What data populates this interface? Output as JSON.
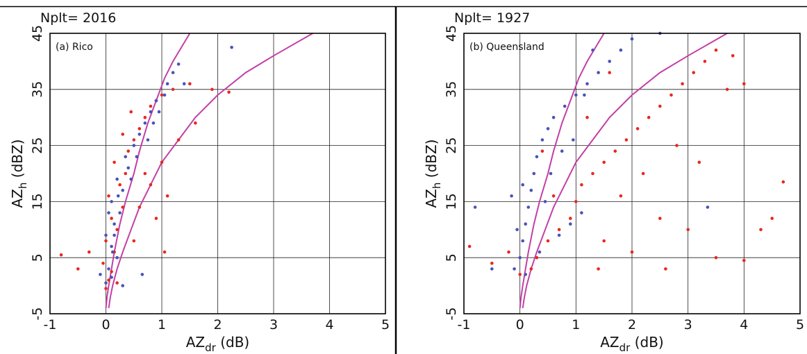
{
  "figure": {
    "colors": {
      "red_points": "#e8281e",
      "blue_points": "#4a52b8",
      "fit_curves": "#c23fa6",
      "grid": "#222222",
      "divider": "#000000"
    }
  },
  "chart_data": [
    {
      "type": "scatter",
      "title": "",
      "nplt_label": "Nplt= 2016",
      "annotation": "(a) Rico",
      "xlabel": {
        "main": "AZ",
        "sub": "dr",
        "unit": " (dB)"
      },
      "ylabel": {
        "main": "AZ",
        "sub": "h",
        "unit": " (dBZ)"
      },
      "xlim": [
        -1,
        5
      ],
      "ylim": [
        -5,
        45
      ],
      "xticks": [
        "-1",
        "0",
        "1",
        "2",
        "3",
        "4",
        "5"
      ],
      "yticks": [
        "-5",
        "5",
        "15",
        "25",
        "35",
        "45"
      ],
      "grid": true,
      "legend": "none",
      "series": [
        {
          "color_key": "red_points",
          "points": [
            [
              0.05,
              1.0
            ],
            [
              0.1,
              2.5
            ],
            [
              -0.05,
              4.0
            ],
            [
              0.15,
              6.0
            ],
            [
              0.0,
              8.0
            ],
            [
              0.2,
              10.0
            ],
            [
              0.1,
              12.0
            ],
            [
              0.3,
              14.0
            ],
            [
              0.05,
              16.0
            ],
            [
              0.25,
              18.0
            ],
            [
              0.35,
              20.0
            ],
            [
              0.15,
              22.0
            ],
            [
              0.4,
              24.0
            ],
            [
              0.5,
              26.0
            ],
            [
              0.3,
              27.0
            ],
            [
              0.6,
              28.0
            ],
            [
              0.7,
              30.0
            ],
            [
              0.45,
              31.0
            ],
            [
              0.8,
              32.0
            ],
            [
              0.9,
              33.0
            ],
            [
              1.0,
              34.0
            ],
            [
              1.2,
              35.0
            ],
            [
              1.5,
              36.0
            ],
            [
              1.9,
              35.0
            ],
            [
              2.2,
              34.5
            ],
            [
              -0.8,
              5.5
            ],
            [
              -0.5,
              3.0
            ],
            [
              -0.3,
              6.0
            ],
            [
              0.6,
              14.0
            ],
            [
              0.8,
              18.0
            ],
            [
              1.0,
              22.0
            ],
            [
              1.3,
              26.0
            ],
            [
              1.6,
              29.0
            ],
            [
              0.5,
              8.0
            ],
            [
              0.9,
              12.0
            ],
            [
              1.1,
              16.0
            ],
            [
              0.7,
              20.0
            ],
            [
              0.2,
              0.5
            ],
            [
              0.0,
              -0.5
            ],
            [
              1.05,
              6.0
            ]
          ]
        },
        {
          "color_key": "blue_points",
          "points": [
            [
              0.0,
              0.5
            ],
            [
              0.1,
              1.5
            ],
            [
              0.05,
              3.0
            ],
            [
              0.2,
              5.0
            ],
            [
              0.1,
              7.0
            ],
            [
              0.0,
              9.0
            ],
            [
              0.15,
              11.0
            ],
            [
              0.25,
              13.0
            ],
            [
              0.1,
              15.0
            ],
            [
              0.3,
              17.0
            ],
            [
              0.2,
              19.0
            ],
            [
              0.4,
              21.0
            ],
            [
              0.35,
              23.0
            ],
            [
              0.5,
              25.0
            ],
            [
              0.6,
              27.0
            ],
            [
              0.7,
              29.0
            ],
            [
              0.8,
              31.0
            ],
            [
              0.9,
              33.0
            ],
            [
              1.1,
              36.0
            ],
            [
              1.2,
              38.0
            ],
            [
              1.3,
              39.5
            ],
            [
              2.25,
              42.5
            ],
            [
              0.05,
              13.0
            ],
            [
              0.15,
              9.0
            ],
            [
              0.45,
              19.0
            ],
            [
              0.55,
              23.0
            ],
            [
              0.75,
              26.0
            ],
            [
              0.85,
              29.0
            ],
            [
              0.95,
              31.0
            ],
            [
              0.65,
              2.0
            ],
            [
              0.3,
              0.0
            ],
            [
              -0.1,
              2.0
            ],
            [
              1.05,
              34.0
            ],
            [
              1.4,
              36.0
            ],
            [
              0.12,
              6.0
            ],
            [
              0.22,
              16.0
            ]
          ]
        }
      ],
      "fit_curves": [
        {
          "points": [
            [
              0.0,
              -4.0
            ],
            [
              0.02,
              -2.0
            ],
            [
              0.05,
              0.0
            ],
            [
              0.1,
              3.0
            ],
            [
              0.15,
              6.0
            ],
            [
              0.25,
              11.0
            ],
            [
              0.35,
              15.0
            ],
            [
              0.5,
              20.0
            ],
            [
              0.6,
              24.0
            ],
            [
              0.75,
              29.0
            ],
            [
              0.9,
              33.0
            ],
            [
              1.05,
              37.0
            ],
            [
              1.2,
              40.0
            ],
            [
              1.5,
              45.0
            ]
          ]
        },
        {
          "points": [
            [
              0.05,
              -4.0
            ],
            [
              0.08,
              -2.0
            ],
            [
              0.12,
              0.0
            ],
            [
              0.2,
              3.0
            ],
            [
              0.3,
              6.0
            ],
            [
              0.45,
              10.0
            ],
            [
              0.6,
              14.0
            ],
            [
              0.8,
              18.0
            ],
            [
              1.0,
              22.0
            ],
            [
              1.3,
              26.0
            ],
            [
              1.6,
              30.0
            ],
            [
              2.0,
              34.0
            ],
            [
              2.5,
              38.0
            ],
            [
              3.0,
              41.0
            ],
            [
              3.7,
              45.0
            ]
          ]
        }
      ]
    },
    {
      "type": "scatter",
      "title": "",
      "nplt_label": "Nplt= 1927",
      "annotation": "(b) Queensland",
      "xlabel": {
        "main": "AZ",
        "sub": "dr",
        "unit": " (dB)"
      },
      "ylabel": {
        "main": "AZ",
        "sub": "h",
        "unit": " (dBZ)"
      },
      "xlim": [
        -1,
        5
      ],
      "ylim": [
        -5,
        45
      ],
      "xticks": [
        "-1",
        "0",
        "1",
        "2",
        "3",
        "4",
        "5"
      ],
      "yticks": [
        "-5",
        "5",
        "15",
        "25",
        "35",
        "45"
      ],
      "grid": true,
      "legend": "none",
      "series": [
        {
          "color_key": "red_points",
          "points": [
            [
              -0.5,
              4.0
            ],
            [
              -0.2,
              6.0
            ],
            [
              0.0,
              2.0
            ],
            [
              0.2,
              3.0
            ],
            [
              0.3,
              5.0
            ],
            [
              0.5,
              8.0
            ],
            [
              0.7,
              10.0
            ],
            [
              0.9,
              12.0
            ],
            [
              1.0,
              15.0
            ],
            [
              1.1,
              18.0
            ],
            [
              1.3,
              20.0
            ],
            [
              1.5,
              22.0
            ],
            [
              1.7,
              24.0
            ],
            [
              1.9,
              26.0
            ],
            [
              2.1,
              28.0
            ],
            [
              2.3,
              30.0
            ],
            [
              2.5,
              32.0
            ],
            [
              2.7,
              34.0
            ],
            [
              2.9,
              36.0
            ],
            [
              3.1,
              38.0
            ],
            [
              3.3,
              40.0
            ],
            [
              3.5,
              42.0
            ],
            [
              3.8,
              41.0
            ],
            [
              4.0,
              36.0
            ],
            [
              4.5,
              12.0
            ],
            [
              4.7,
              18.5
            ],
            [
              4.0,
              4.5
            ],
            [
              3.5,
              5.0
            ],
            [
              3.0,
              10.0
            ],
            [
              2.5,
              12.0
            ],
            [
              2.0,
              6.0
            ],
            [
              1.5,
              8.0
            ],
            [
              1.8,
              16.0
            ],
            [
              2.2,
              20.0
            ],
            [
              2.8,
              25.0
            ],
            [
              3.2,
              22.0
            ],
            [
              1.2,
              30.0
            ],
            [
              1.6,
              38.0
            ],
            [
              0.6,
              16.0
            ],
            [
              0.4,
              24.0
            ],
            [
              -0.9,
              7.0
            ],
            [
              1.4,
              3.0
            ],
            [
              2.6,
              3.0
            ],
            [
              3.7,
              35.0
            ],
            [
              4.3,
              10.0
            ]
          ]
        },
        {
          "color_key": "blue_points",
          "points": [
            [
              -0.1,
              3.0
            ],
            [
              0.0,
              5.0
            ],
            [
              0.05,
              8.0
            ],
            [
              0.1,
              11.0
            ],
            [
              0.15,
              14.0
            ],
            [
              0.2,
              17.0
            ],
            [
              0.25,
              20.0
            ],
            [
              0.3,
              23.0
            ],
            [
              0.4,
              26.0
            ],
            [
              0.5,
              28.0
            ],
            [
              0.6,
              30.0
            ],
            [
              0.8,
              32.0
            ],
            [
              1.0,
              34.0
            ],
            [
              1.2,
              36.0
            ],
            [
              1.4,
              38.0
            ],
            [
              1.6,
              40.0
            ],
            [
              1.8,
              42.0
            ],
            [
              2.0,
              44.0
            ],
            [
              2.5,
              45.0
            ],
            [
              0.1,
              2.0
            ],
            [
              0.35,
              6.0
            ],
            [
              0.7,
              9.0
            ],
            [
              0.9,
              11.0
            ],
            [
              1.1,
              13.0
            ],
            [
              0.55,
              20.0
            ],
            [
              0.75,
              24.0
            ],
            [
              1.15,
              34.0
            ],
            [
              0.45,
              15.0
            ],
            [
              -0.05,
              10.0
            ],
            [
              -0.15,
              16.0
            ],
            [
              1.3,
              42.0
            ],
            [
              0.95,
              26.0
            ],
            [
              3.35,
              14.0
            ],
            [
              -0.5,
              3.0
            ],
            [
              -0.8,
              14.0
            ],
            [
              0.05,
              18.0
            ]
          ]
        }
      ],
      "fit_curves": [
        {
          "points": [
            [
              0.0,
              -4.0
            ],
            [
              0.02,
              -2.0
            ],
            [
              0.05,
              0.0
            ],
            [
              0.1,
              3.0
            ],
            [
              0.15,
              6.0
            ],
            [
              0.25,
              11.0
            ],
            [
              0.35,
              15.0
            ],
            [
              0.5,
              20.0
            ],
            [
              0.6,
              24.0
            ],
            [
              0.75,
              29.0
            ],
            [
              0.9,
              33.0
            ],
            [
              1.05,
              37.0
            ],
            [
              1.2,
              40.0
            ],
            [
              1.5,
              45.0
            ]
          ]
        },
        {
          "points": [
            [
              0.05,
              -4.0
            ],
            [
              0.08,
              -2.0
            ],
            [
              0.12,
              0.0
            ],
            [
              0.2,
              3.0
            ],
            [
              0.3,
              6.0
            ],
            [
              0.45,
              10.0
            ],
            [
              0.6,
              14.0
            ],
            [
              0.8,
              18.0
            ],
            [
              1.0,
              22.0
            ],
            [
              1.3,
              26.0
            ],
            [
              1.6,
              30.0
            ],
            [
              2.0,
              34.0
            ],
            [
              2.5,
              38.0
            ],
            [
              3.0,
              41.0
            ],
            [
              3.7,
              45.0
            ]
          ]
        }
      ]
    }
  ]
}
